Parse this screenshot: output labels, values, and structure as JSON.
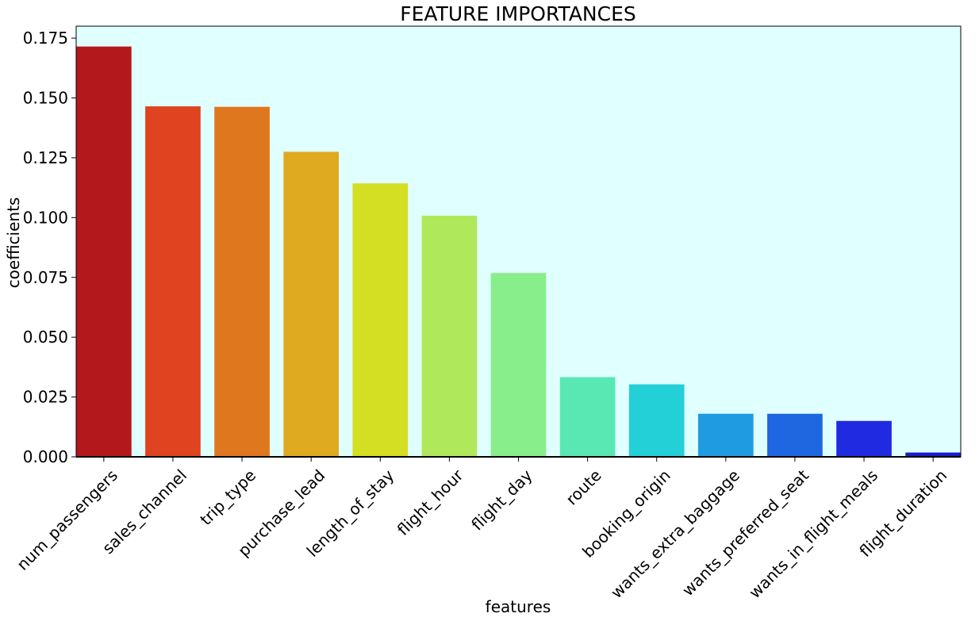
{
  "chart_data": {
    "type": "bar",
    "title": "FEATURE IMPORTANCES",
    "xlabel": "features",
    "ylabel": "coefficients",
    "ylim": [
      0,
      0.18
    ],
    "yticks": [
      "0.000",
      "0.025",
      "0.050",
      "0.075",
      "0.100",
      "0.125",
      "0.150",
      "0.175"
    ],
    "categories": [
      "num_passengers",
      "sales_channel",
      "trip_type",
      "purchase_lead",
      "length_of_stay",
      "flight_hour",
      "flight_day",
      "route",
      "booking_origin",
      "wants_extra_baggage",
      "wants_preferred_seat",
      "wants_in_flight_meals",
      "flight_duration"
    ],
    "values": [
      0.1715,
      0.1465,
      0.1463,
      0.1275,
      0.1143,
      0.1008,
      0.0768,
      0.0333,
      0.0303,
      0.018,
      0.018,
      0.015,
      0.0018
    ],
    "colors": [
      "#b3191c",
      "#df431f",
      "#df771f",
      "#dfaa1f",
      "#d4de22",
      "#b0e85b",
      "#88ee8b",
      "#59e8b4",
      "#23d0d8",
      "#1f9ce1",
      "#1f66e1",
      "#1f2ae1",
      "#1a1dc7"
    ],
    "plot_background": "#e0ffff",
    "grid": false,
    "legend": "none"
  }
}
